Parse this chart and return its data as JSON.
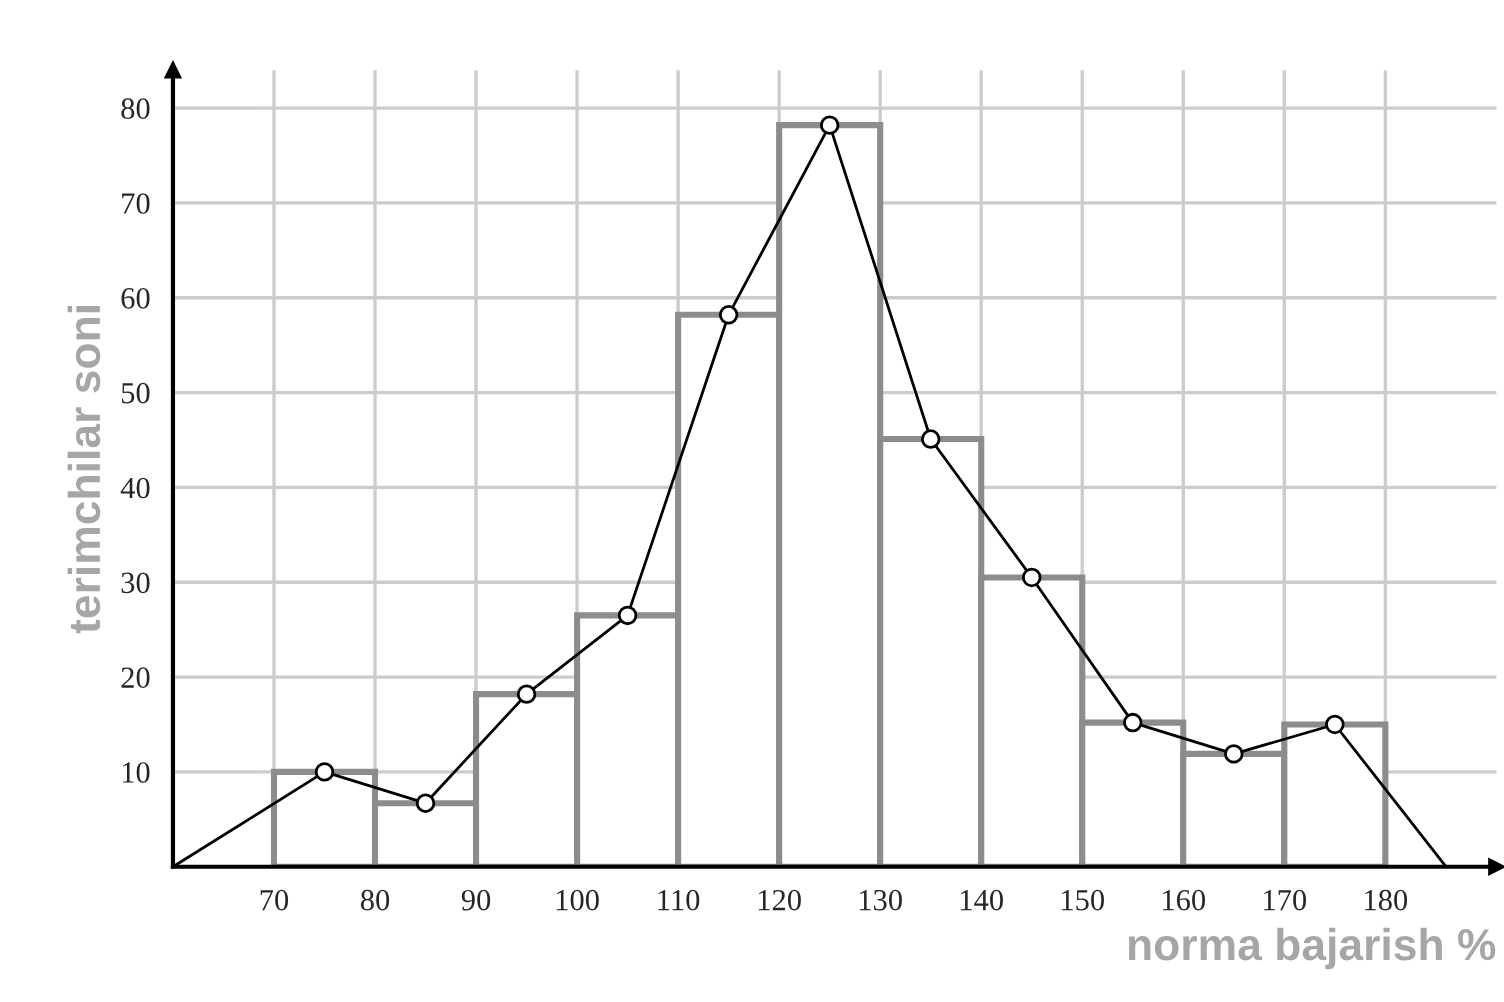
{
  "chart_data": {
    "type": "histogram",
    "xlabel": "norma bajarish %",
    "ylabel": "terimchilar soni",
    "bins": [
      70,
      80,
      90,
      100,
      110,
      120,
      130,
      140,
      150,
      160,
      170,
      180
    ],
    "values": [
      10,
      6.7,
      18.2,
      26.5,
      58.2,
      78.2,
      45.1,
      30.5,
      15.2,
      11.9,
      15.0
    ],
    "color": "#8c8c8c",
    "series": [
      {
        "type": "line",
        "color": "#000000",
        "x": [
          60,
          75,
          85,
          95,
          105,
          115,
          125,
          135,
          145,
          155,
          165,
          175,
          186
        ],
        "values": [
          0,
          10,
          6.7,
          18.2,
          26.5,
          58.2,
          78.2,
          45.1,
          30.5,
          15.2,
          11.9,
          15.0,
          0
        ]
      }
    ],
    "marker": "circle",
    "line_style": "solid",
    "xlim": [
      60,
      191
    ],
    "xticks": [
      70,
      80,
      90,
      100,
      110,
      120,
      130,
      140,
      150,
      160,
      170,
      180
    ],
    "ylim": [
      0,
      84
    ],
    "yticks": [
      10,
      20,
      30,
      40,
      50,
      60,
      70,
      80
    ],
    "grid": true,
    "legend": false
  }
}
